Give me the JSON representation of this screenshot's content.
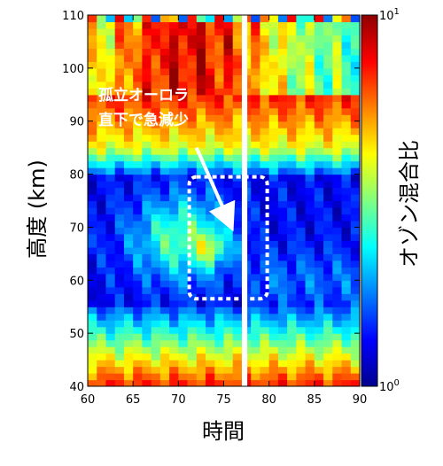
{
  "chart_data": {
    "type": "heatmap",
    "title": "",
    "xlabel": "時間",
    "ylabel": "高度 (km)",
    "colorbar_label": "オゾン混合比",
    "xlim": [
      60,
      90
    ],
    "ylim": [
      40,
      110
    ],
    "x_ticks": [
      60,
      65,
      70,
      75,
      80,
      85,
      90
    ],
    "y_ticks": [
      40,
      50,
      60,
      70,
      80,
      90,
      100,
      110
    ],
    "colorbar": {
      "scale": "log",
      "range": [
        1,
        10
      ],
      "tick_labels": [
        "10",
        "10"
      ],
      "tick_exponents": [
        "0",
        "1"
      ],
      "colors": [
        "#00008f",
        "#0000ff",
        "#0080ff",
        "#00ffff",
        "#80ff80",
        "#ffff00",
        "#ff8000",
        "#ff0000",
        "#8f0000"
      ]
    },
    "data_gap": {
      "x_start": 77.0,
      "x_end": 77.6,
      "color": "#ffffff"
    },
    "annotation": {
      "lines": [
        "孤立オーロラ",
        "直下で急減少"
      ],
      "highlight_box": {
        "x0": 71.2,
        "x1": 79.8,
        "y0": 56.5,
        "y1": 79.5
      },
      "arrow_from": {
        "x": 72.0,
        "y": 85.0
      },
      "arrow_to": {
        "x": 75.6,
        "y": 71.0
      }
    },
    "description_of_field": "log10 ozone mixing ratio (0=1, 1=10) vs time and altitude"
  }
}
